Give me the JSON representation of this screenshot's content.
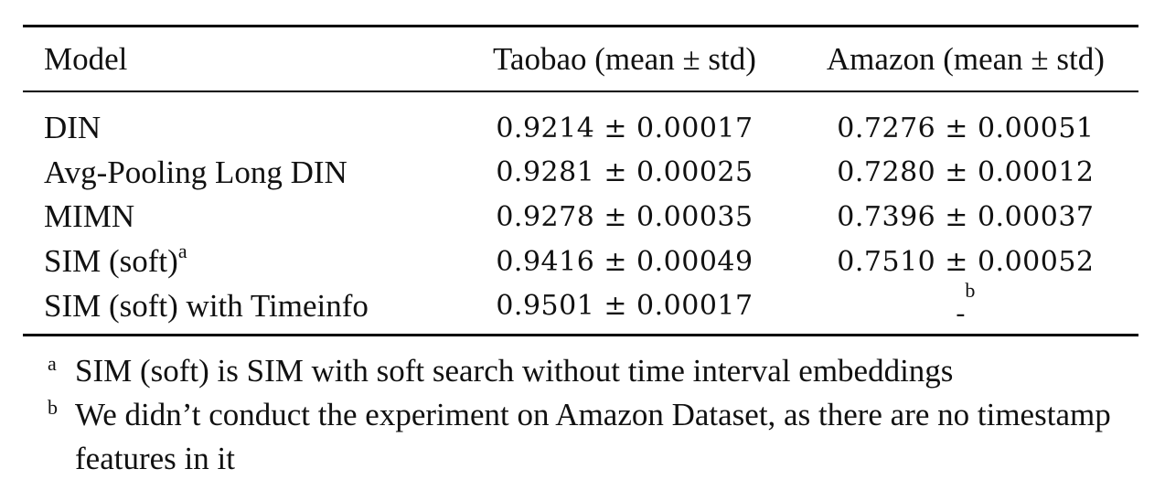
{
  "table": {
    "headers": [
      "Model",
      "Taobao (mean ± std)",
      "Amazon (mean ± std)"
    ],
    "rows": [
      {
        "model": "DIN",
        "model_mark": "",
        "taobao": "0.9214 ± 0.00017",
        "taobao_bold": false,
        "amazon": "0.7276 ± 0.00051",
        "amazon_bold": false,
        "amazon_mark": ""
      },
      {
        "model": "Avg-Pooling Long DIN",
        "model_mark": "",
        "taobao": "0.9281 ± 0.00025",
        "taobao_bold": false,
        "amazon": "0.7280 ± 0.00012",
        "amazon_bold": false,
        "amazon_mark": ""
      },
      {
        "model": "MIMN",
        "model_mark": "",
        "taobao": "0.9278 ± 0.00035",
        "taobao_bold": false,
        "amazon": "0.7396 ± 0.00037",
        "amazon_bold": false,
        "amazon_mark": ""
      },
      {
        "model": "SIM (soft)",
        "model_mark": "a",
        "taobao": "0.9416 ± 0.00049",
        "taobao_bold": false,
        "amazon": "0.7510 ± 0.00052",
        "amazon_bold": true,
        "amazon_mark": ""
      },
      {
        "model": "SIM (soft) with Timeinfo",
        "model_mark": "",
        "taobao": "0.9501 ± 0.00017",
        "taobao_bold": true,
        "amazon": "-",
        "amazon_bold": false,
        "amazon_mark": "b"
      }
    ]
  },
  "footnotes": [
    {
      "mark": "a",
      "text": "SIM (soft) is SIM with soft search without time interval embeddings"
    },
    {
      "mark": "b",
      "text": "We didn’t conduct the experiment on Amazon Dataset, as there are no timestamp features in it"
    }
  ]
}
